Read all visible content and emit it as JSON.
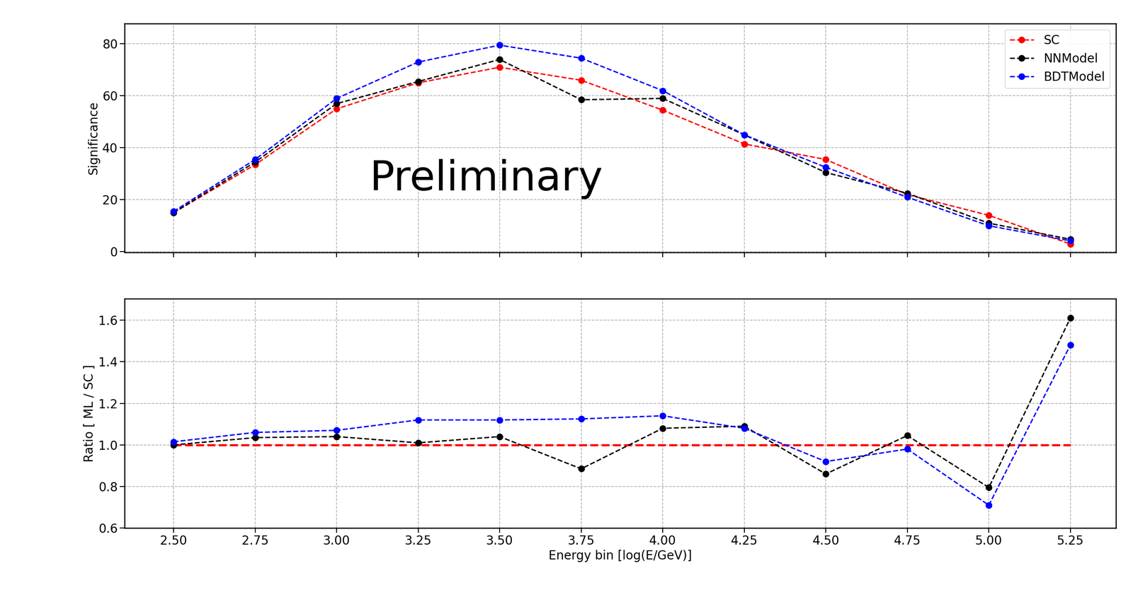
{
  "chart_data": [
    {
      "type": "line",
      "y_label": "Significance",
      "annotations": [
        "Preliminary"
      ],
      "x": [
        2.5,
        2.75,
        3.0,
        3.25,
        3.5,
        3.75,
        4.0,
        4.25,
        4.5,
        4.75,
        5.0,
        5.25
      ],
      "xlim": [
        2.35,
        5.39
      ],
      "xticks": [
        {
          "value": 2.5,
          "label": "2.50"
        },
        {
          "value": 2.75,
          "label": "2.75"
        },
        {
          "value": 3.0,
          "label": "3.00"
        },
        {
          "value": 3.25,
          "label": "3.25"
        },
        {
          "value": 3.5,
          "label": "3.50"
        },
        {
          "value": 3.75,
          "label": "3.75"
        },
        {
          "value": 4.0,
          "label": "4.00"
        },
        {
          "value": 4.25,
          "label": "4.25"
        },
        {
          "value": 4.5,
          "label": "4.50"
        },
        {
          "value": 4.75,
          "label": "4.75"
        },
        {
          "value": 5.0,
          "label": "5.00"
        },
        {
          "value": 5.25,
          "label": "5.25"
        }
      ],
      "ylim": [
        -0.3,
        87.8
      ],
      "yticks": [
        0,
        20,
        40,
        60,
        80
      ],
      "grid": true,
      "legend": "upper right",
      "tick_labels": "y",
      "series": [
        {
          "name": "SC",
          "color": "#ff0000",
          "marker": "o",
          "line_style": "dashed",
          "values": [
            15,
            33.5,
            55,
            65,
            71,
            66,
            54.5,
            41.5,
            35.5,
            22,
            14,
            3
          ]
        },
        {
          "name": "NNModel",
          "color": "#000000",
          "marker": "o",
          "line_style": "dashed",
          "values": [
            15,
            34.5,
            57,
            65.5,
            74,
            58.5,
            59,
            45,
            30.5,
            22.5,
            11,
            4.8
          ]
        },
        {
          "name": "BDTModel",
          "color": "#0000ff",
          "marker": "o",
          "line_style": "dashed",
          "values": [
            15.5,
            35.5,
            59,
            73,
            79.5,
            74.5,
            62,
            45,
            32.5,
            21,
            10,
            4.2
          ]
        }
      ]
    },
    {
      "type": "line",
      "x_label": "Energy bin [log(E/GeV)]",
      "y_label": "Ratio [ ML / SC ]",
      "x": [
        2.5,
        2.75,
        3.0,
        3.25,
        3.5,
        3.75,
        4.0,
        4.25,
        4.5,
        4.75,
        5.0,
        5.25
      ],
      "xlim": [
        2.35,
        5.39
      ],
      "xticks": [
        {
          "value": 2.5,
          "label": "2.50"
        },
        {
          "value": 2.75,
          "label": "2.75"
        },
        {
          "value": 3.0,
          "label": "3.00"
        },
        {
          "value": 3.25,
          "label": "3.25"
        },
        {
          "value": 3.5,
          "label": "3.50"
        },
        {
          "value": 3.75,
          "label": "3.75"
        },
        {
          "value": 4.0,
          "label": "4.00"
        },
        {
          "value": 4.25,
          "label": "4.25"
        },
        {
          "value": 4.5,
          "label": "4.50"
        },
        {
          "value": 4.75,
          "label": "4.75"
        },
        {
          "value": 5.0,
          "label": "5.00"
        },
        {
          "value": 5.25,
          "label": "5.25"
        }
      ],
      "ylim": [
        0.6,
        1.704
      ],
      "yticks": [
        0.6,
        0.8,
        1.0,
        1.2,
        1.4,
        1.6
      ],
      "grid": true,
      "series": [
        {
          "name": "SC",
          "color": "#ff0000",
          "marker": "none",
          "line_style": "dashed",
          "values": [
            1.0,
            1.0,
            1.0,
            1.0,
            1.0,
            1.0,
            1.0,
            1.0,
            1.0,
            1.0,
            1.0,
            1.0
          ]
        },
        {
          "name": "NNModel",
          "color": "#000000",
          "marker": "o",
          "line_style": "dashed",
          "values": [
            1.0,
            1.035,
            1.04,
            1.01,
            1.04,
            0.885,
            1.08,
            1.09,
            0.86,
            1.045,
            0.795,
            1.61
          ]
        },
        {
          "name": "BDTModel",
          "color": "#0000ff",
          "marker": "o",
          "line_style": "dashed",
          "values": [
            1.015,
            1.06,
            1.07,
            1.12,
            1.12,
            1.125,
            1.14,
            1.08,
            0.92,
            0.98,
            0.71,
            1.48
          ]
        }
      ]
    }
  ]
}
